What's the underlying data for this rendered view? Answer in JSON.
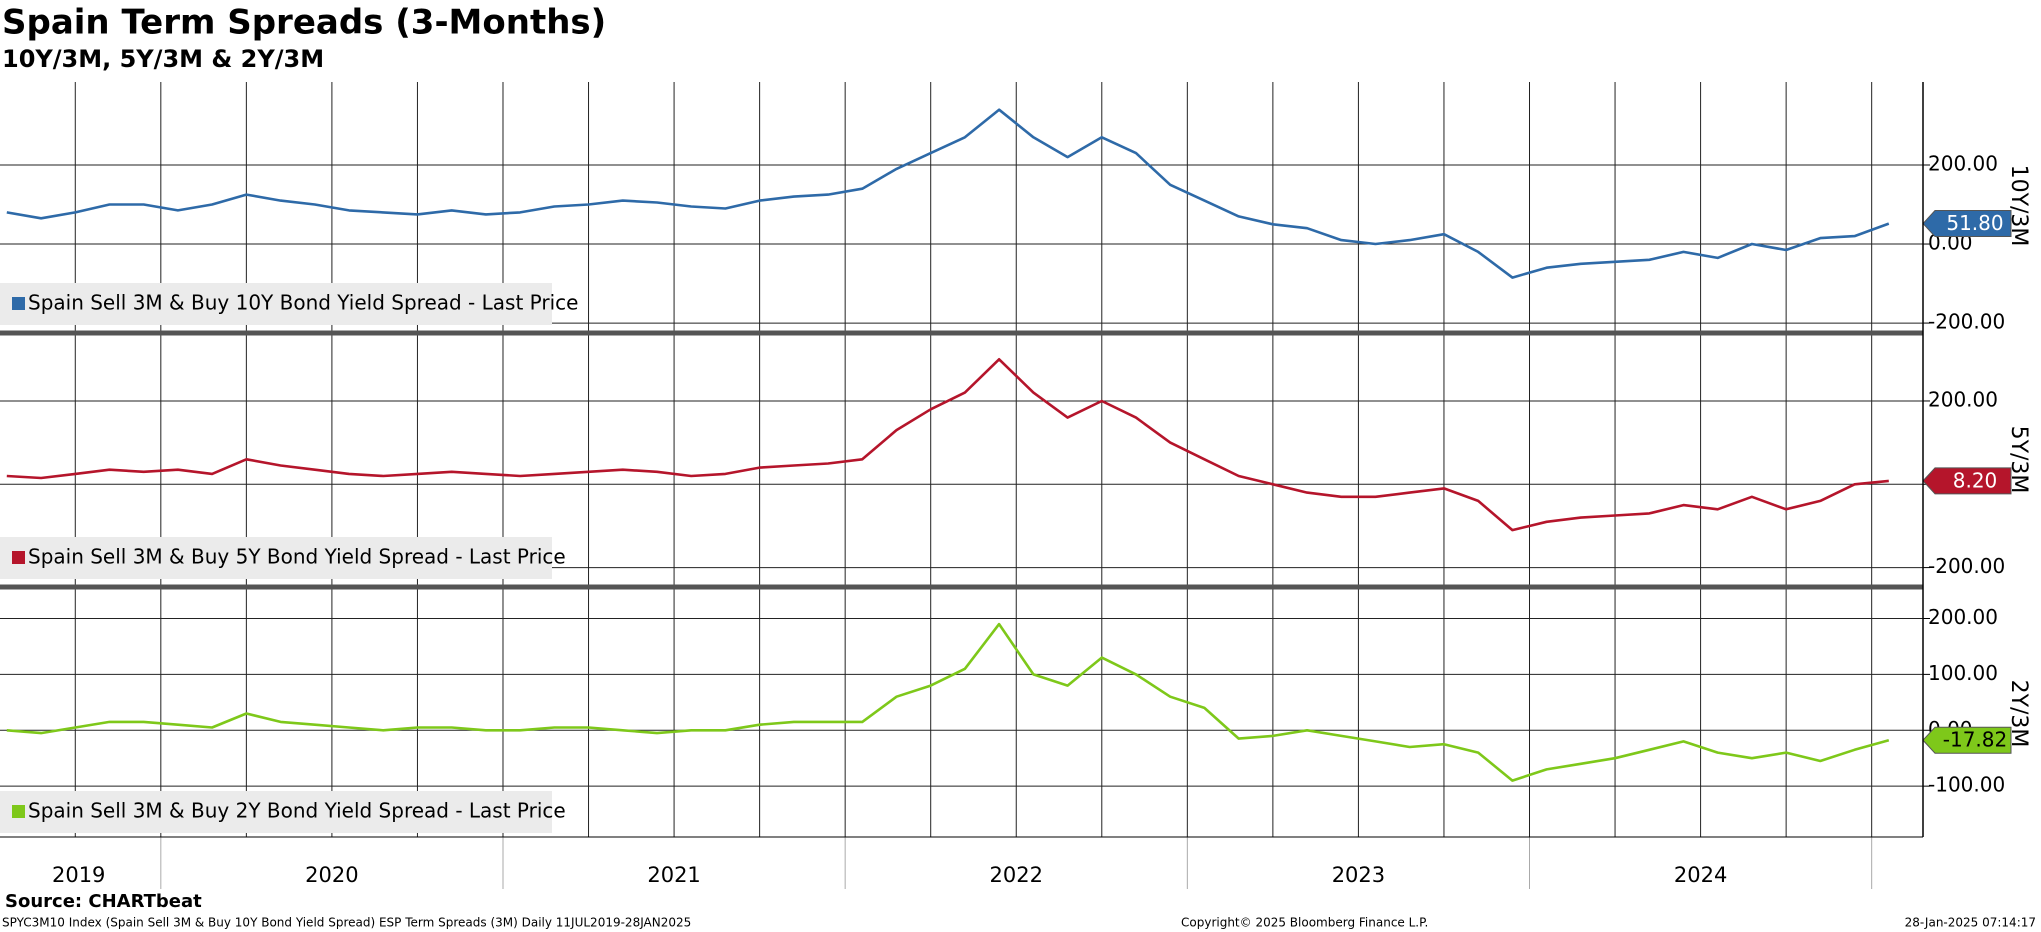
{
  "title": "Spain Term Spreads (3-Months)",
  "subtitle": "10Y/3M, 5Y/3M & 2Y/3M",
  "x_axis": {
    "xlim": [
      2019.53,
      2025.15
    ],
    "xticks": [
      {
        "value": 2019.76,
        "label": "2019"
      },
      {
        "value": 2020.5,
        "label": "2020"
      },
      {
        "value": 2021.5,
        "label": "2021"
      },
      {
        "value": 2022.5,
        "label": "2022"
      },
      {
        "value": 2023.5,
        "label": "2023"
      },
      {
        "value": 2024.5,
        "label": "2024"
      }
    ],
    "xgrid": [
      2019.75,
      2020,
      2020.25,
      2020.5,
      2020.75,
      2021,
      2021.25,
      2021.5,
      2021.75,
      2022,
      2022.25,
      2022.5,
      2022.75,
      2023,
      2023.25,
      2023.5,
      2023.75,
      2024,
      2024.25,
      2024.5,
      2024.75,
      2025
    ],
    "dividers": [
      2020,
      2021,
      2022,
      2023,
      2024,
      2025
    ]
  },
  "chart_data": [
    {
      "type": "line",
      "y_label": "10Y/3M",
      "x": [
        2019.55,
        2019.65,
        2019.75,
        2019.85,
        2019.95,
        2020.05,
        2020.15,
        2020.25,
        2020.35,
        2020.45,
        2020.55,
        2020.65,
        2020.75,
        2020.85,
        2020.95,
        2021.05,
        2021.15,
        2021.25,
        2021.35,
        2021.45,
        2021.55,
        2021.65,
        2021.75,
        2021.85,
        2021.95,
        2022.05,
        2022.15,
        2022.25,
        2022.35,
        2022.45,
        2022.55,
        2022.65,
        2022.75,
        2022.85,
        2022.95,
        2023.05,
        2023.15,
        2023.25,
        2023.35,
        2023.45,
        2023.55,
        2023.65,
        2023.75,
        2023.85,
        2023.95,
        2024.05,
        2024.15,
        2024.25,
        2024.35,
        2024.45,
        2024.55,
        2024.65,
        2024.75,
        2024.85,
        2024.95,
        2025.05
      ],
      "series": [
        {
          "name": "Spain Sell 3M & Buy 10Y Bond Yield Spread - Last Price",
          "color": "#2e6aa8",
          "values": [
            80,
            65,
            80,
            100,
            100,
            85,
            100,
            125,
            110,
            100,
            85,
            80,
            75,
            85,
            75,
            80,
            95,
            100,
            110,
            105,
            95,
            90,
            110,
            120,
            125,
            140,
            190,
            230,
            270,
            340,
            270,
            220,
            270,
            230,
            150,
            110,
            70,
            50,
            40,
            10,
            0,
            10,
            25,
            -20,
            -85,
            -60,
            -50,
            -45,
            -40,
            -20,
            -35,
            0,
            -15,
            15,
            20,
            51.8
          ]
        }
      ],
      "last_label": {
        "value": 51.8,
        "label": "51.80",
        "text_color": "#ffffff"
      },
      "ylim": [
        -215,
        410
      ],
      "yticks": [
        {
          "value": 200,
          "label": "200.00"
        },
        {
          "value": 0,
          "label": "0.00"
        },
        {
          "value": -200,
          "label": "-200.00"
        }
      ]
    },
    {
      "type": "line",
      "y_label": "5Y/3M",
      "x": [
        2019.55,
        2019.65,
        2019.75,
        2019.85,
        2019.95,
        2020.05,
        2020.15,
        2020.25,
        2020.35,
        2020.45,
        2020.55,
        2020.65,
        2020.75,
        2020.85,
        2020.95,
        2021.05,
        2021.15,
        2021.25,
        2021.35,
        2021.45,
        2021.55,
        2021.65,
        2021.75,
        2021.85,
        2021.95,
        2022.05,
        2022.15,
        2022.25,
        2022.35,
        2022.45,
        2022.55,
        2022.65,
        2022.75,
        2022.85,
        2022.95,
        2023.05,
        2023.15,
        2023.25,
        2023.35,
        2023.45,
        2023.55,
        2023.65,
        2023.75,
        2023.85,
        2023.95,
        2024.05,
        2024.15,
        2024.25,
        2024.35,
        2024.45,
        2024.55,
        2024.65,
        2024.75,
        2024.85,
        2024.95,
        2025.05
      ],
      "series": [
        {
          "name": "Spain Sell 3M & Buy 5Y Bond Yield Spread - Last Price",
          "color": "#b5152b",
          "values": [
            20,
            15,
            25,
            35,
            30,
            35,
            25,
            60,
            45,
            35,
            25,
            20,
            25,
            30,
            25,
            20,
            25,
            30,
            35,
            30,
            20,
            25,
            40,
            45,
            50,
            60,
            130,
            180,
            220,
            300,
            220,
            160,
            200,
            160,
            100,
            60,
            20,
            0,
            -20,
            -30,
            -30,
            -20,
            -10,
            -40,
            -110,
            -90,
            -80,
            -75,
            -70,
            -50,
            -60,
            -30,
            -60,
            -40,
            0,
            8.2
          ]
        }
      ],
      "last_label": {
        "value": 8.2,
        "label": "8.20",
        "text_color": "#ffffff"
      },
      "ylim": [
        -237,
        356
      ],
      "yticks": [
        {
          "value": 200,
          "label": "200.00"
        },
        {
          "value": 0,
          "label": "0.00"
        },
        {
          "value": -200,
          "label": "-200.00"
        }
      ]
    },
    {
      "type": "line",
      "y_label": "2Y/3M",
      "x": [
        2019.55,
        2019.65,
        2019.75,
        2019.85,
        2019.95,
        2020.05,
        2020.15,
        2020.25,
        2020.35,
        2020.45,
        2020.55,
        2020.65,
        2020.75,
        2020.85,
        2020.95,
        2021.05,
        2021.15,
        2021.25,
        2021.35,
        2021.45,
        2021.55,
        2021.65,
        2021.75,
        2021.85,
        2021.95,
        2022.05,
        2022.15,
        2022.25,
        2022.35,
        2022.45,
        2022.55,
        2022.65,
        2022.75,
        2022.85,
        2022.95,
        2023.05,
        2023.15,
        2023.25,
        2023.35,
        2023.45,
        2023.55,
        2023.65,
        2023.75,
        2023.85,
        2023.95,
        2024.05,
        2024.15,
        2024.25,
        2024.35,
        2024.45,
        2024.55,
        2024.65,
        2024.75,
        2024.85,
        2024.95,
        2025.05
      ],
      "series": [
        {
          "name": "Spain Sell 3M & Buy 2Y Bond Yield Spread - Last Price",
          "color": "#7ec81a",
          "values": [
            0,
            -5,
            5,
            15,
            15,
            10,
            5,
            30,
            15,
            10,
            5,
            0,
            5,
            5,
            0,
            0,
            5,
            5,
            0,
            -5,
            0,
            0,
            10,
            15,
            15,
            15,
            60,
            80,
            110,
            190,
            100,
            80,
            130,
            100,
            60,
            40,
            -15,
            -10,
            0,
            -10,
            -20,
            -30,
            -25,
            -40,
            -90,
            -70,
            -60,
            -50,
            -35,
            -20,
            -40,
            -50,
            -40,
            -55,
            -35,
            -17.82
          ]
        }
      ],
      "last_label": {
        "value": -17.82,
        "label": "-17.82",
        "text_color": "#000000"
      },
      "ylim": [
        -191,
        251
      ],
      "yticks": [
        {
          "value": 200,
          "label": "200.00"
        },
        {
          "value": 100,
          "label": "100.00"
        },
        {
          "value": 0,
          "label": "0.00"
        },
        {
          "value": -100,
          "label": "-100.00"
        }
      ]
    }
  ],
  "footer": {
    "source": "Source: CHARTbeat",
    "description": "SPYC3M10 Index (Spain Sell 3M & Buy 10Y Bond Yield Spread) ESP Term Spreads (3M)  Daily 11JUL2019-28JAN2025",
    "copyright": "Copyright© 2025 Bloomberg Finance L.P.",
    "timestamp": "28-Jan-2025 07:14:17"
  }
}
